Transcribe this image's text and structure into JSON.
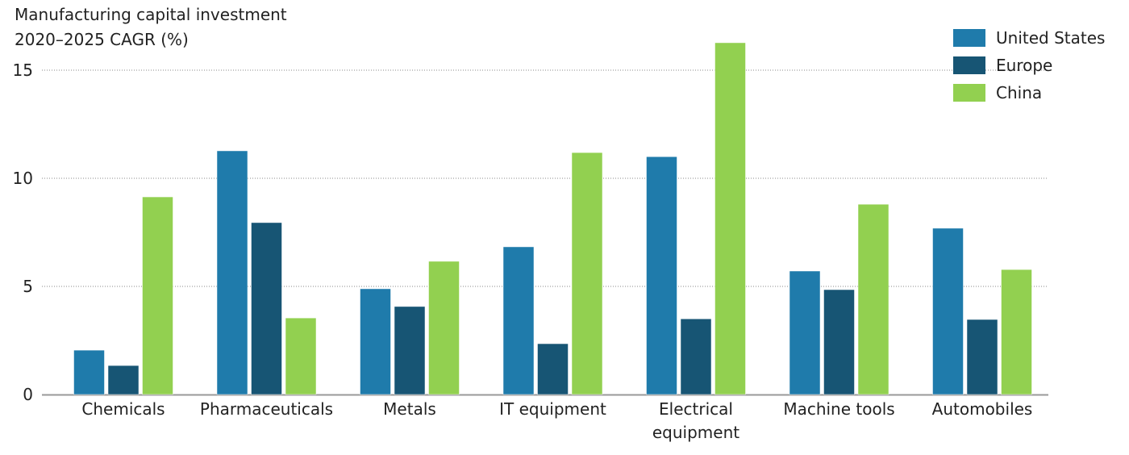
{
  "chart_data": {
    "type": "bar",
    "title": "Manufacturing capital investment",
    "subtitle": "2020–2025 CAGR (%)",
    "categories": [
      "Chemicals",
      "Pharmaceuticals",
      "Metals",
      "IT equipment",
      "Electrical equipment",
      "Machine tools",
      "Automobiles"
    ],
    "series": [
      {
        "name": "United States",
        "color": "#1f7bab",
        "values": [
          2.05,
          11.27,
          4.89,
          6.83,
          11.0,
          5.71,
          7.69
        ]
      },
      {
        "name": "Europe",
        "color": "#175574",
        "values": [
          1.34,
          7.95,
          4.07,
          2.35,
          3.5,
          4.85,
          3.47
        ]
      },
      {
        "name": "China",
        "color": "#92d050",
        "values": [
          9.14,
          3.54,
          6.16,
          11.19,
          16.27,
          8.8,
          5.78
        ]
      }
    ],
    "yticks": [
      "0",
      "5",
      "10",
      "15"
    ],
    "ylim": [
      0,
      16.3
    ],
    "grid": true,
    "legend": "top-right"
  }
}
